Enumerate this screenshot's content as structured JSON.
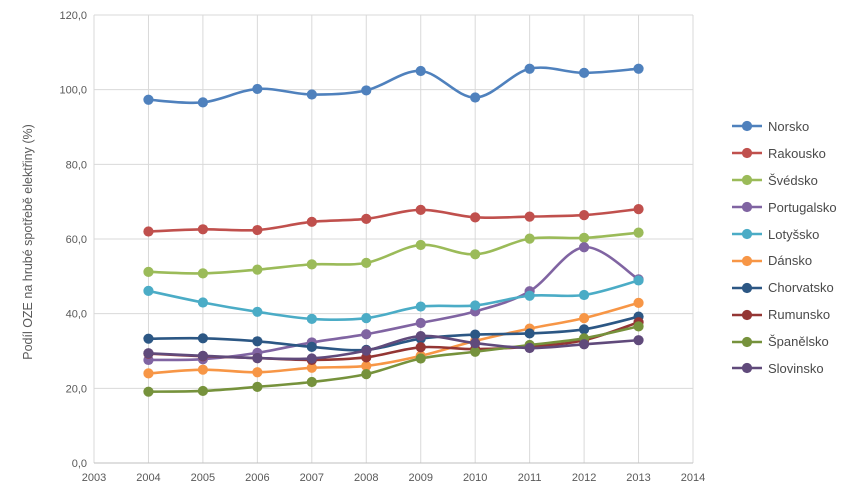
{
  "chart_data": {
    "type": "line",
    "title": "",
    "xlabel": "",
    "ylabel": "Podíl OZE na hrubé spotřebě elektřiny (%)",
    "x": [
      2004,
      2005,
      2006,
      2007,
      2008,
      2009,
      2010,
      2011,
      2012,
      2013
    ],
    "xlim": [
      2003,
      2014
    ],
    "ylim": [
      0,
      120
    ],
    "y_tick_step": 20,
    "x_tick_labels": [
      "2003",
      "2004",
      "2005",
      "2006",
      "2007",
      "2008",
      "2009",
      "2010",
      "2011",
      "2012",
      "2013",
      "2014"
    ],
    "y_tick_labels": [
      "0,0",
      "20,0",
      "40,0",
      "60,0",
      "80,0",
      "100,0",
      "120,0"
    ],
    "grid": true,
    "smoothed_lines": true,
    "legend_position": "right",
    "series": [
      {
        "name": "Norsko",
        "color": "#4F81BD",
        "values": [
          97.3,
          96.6,
          100.2,
          98.7,
          99.8,
          105.0,
          97.9,
          105.6,
          104.5,
          105.6
        ]
      },
      {
        "name": "Rakousko",
        "color": "#C0504D",
        "values": [
          62.0,
          62.6,
          62.4,
          64.6,
          65.4,
          67.8,
          65.8,
          66.0,
          66.4,
          68.0
        ]
      },
      {
        "name": "Švédsko",
        "color": "#9BBB59",
        "values": [
          51.2,
          50.8,
          51.8,
          53.2,
          53.6,
          58.4,
          55.9,
          60.1,
          60.3,
          61.7
        ]
      },
      {
        "name": "Portugalsko",
        "color": "#8064A2",
        "values": [
          27.6,
          27.8,
          29.5,
          32.3,
          34.5,
          37.5,
          40.6,
          46.0,
          57.8,
          49.2
        ]
      },
      {
        "name": "Lotyšsko",
        "color": "#4BACC6",
        "values": [
          46.1,
          43.0,
          40.5,
          38.6,
          38.8,
          41.9,
          42.2,
          44.8,
          45.0,
          48.9
        ]
      },
      {
        "name": "Dánsko",
        "color": "#F79646",
        "values": [
          24.0,
          25.0,
          24.3,
          25.5,
          26.0,
          28.7,
          32.7,
          36.0,
          38.8,
          42.9
        ]
      },
      {
        "name": "Chorvatsko",
        "color": "#2C5784",
        "values": [
          33.3,
          33.4,
          32.6,
          31.1,
          30.3,
          33.3,
          34.4,
          34.7,
          35.8,
          39.2
        ]
      },
      {
        "name": "Rumunsko",
        "color": "#943634",
        "values": [
          29.3,
          28.6,
          28.1,
          27.6,
          28.3,
          31.0,
          30.5,
          31.2,
          32.9,
          37.7
        ]
      },
      {
        "name": "Španělsko",
        "color": "#76923C",
        "values": [
          19.1,
          19.3,
          20.4,
          21.7,
          23.8,
          28.0,
          29.8,
          31.6,
          33.4,
          36.6
        ]
      },
      {
        "name": "Slovinsko",
        "color": "#604A7B",
        "values": [
          29.4,
          28.7,
          28.1,
          28.0,
          30.1,
          34.0,
          32.1,
          30.8,
          31.8,
          32.9
        ]
      }
    ]
  },
  "style": {
    "grid_color": "#D9D9D9",
    "axis_line_color": "#BFBFBF",
    "tick_text_color": "#595959",
    "legend_text_color": "#4a4a4a",
    "background": "#FFFFFF"
  }
}
